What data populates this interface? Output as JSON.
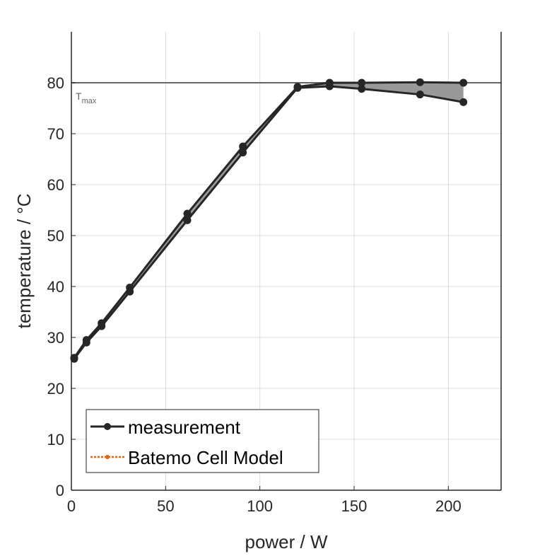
{
  "chart_data": {
    "type": "line",
    "title": "",
    "xlabel": "power / W",
    "ylabel": "temperature / °C",
    "xlim": [
      0,
      228
    ],
    "ylim": [
      0,
      90
    ],
    "xticks": [
      0,
      50,
      100,
      150,
      200
    ],
    "yticks": [
      0,
      10,
      20,
      30,
      40,
      50,
      60,
      70,
      80
    ],
    "grid": true,
    "x": [
      1.5,
      8,
      16,
      31,
      61.5,
      91,
      120,
      137,
      154,
      185,
      208
    ],
    "series": [
      {
        "name": "measurement (upper)",
        "values": [
          26,
          29.5,
          32.8,
          39.8,
          54.3,
          67.5,
          79.2,
          80,
          80,
          80.1,
          80
        ]
      },
      {
        "name": "measurement (lower)",
        "values": [
          25.8,
          29,
          32.2,
          39,
          53,
          66.3,
          79,
          79.3,
          78.8,
          77.7,
          76.2
        ]
      }
    ],
    "reference_line": {
      "label_main": "T",
      "label_sub": "max",
      "y": 80
    },
    "legend": {
      "placement": "bottom-left",
      "entries": [
        {
          "label": "measurement",
          "color": "#262626"
        },
        {
          "label": "Batemo Cell Model",
          "color": "#e8650f"
        }
      ]
    },
    "colors": {
      "line": "#262626",
      "fill": "#999999",
      "ref": "#666666",
      "grid": "#dcdcdc"
    }
  }
}
